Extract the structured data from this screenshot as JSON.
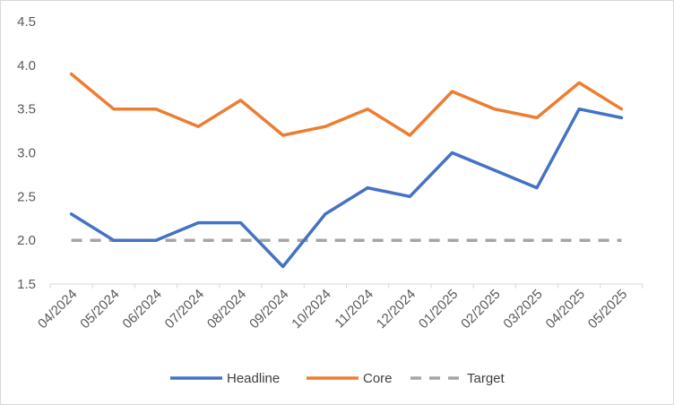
{
  "chart_data": {
    "type": "line",
    "title": "",
    "xlabel": "",
    "ylabel": "",
    "categories": [
      "04/2024",
      "05/2024",
      "06/2024",
      "07/2024",
      "08/2024",
      "09/2024",
      "10/2024",
      "11/2024",
      "12/2024",
      "01/2025",
      "02/2025",
      "03/2025",
      "04/2025",
      "05/2025"
    ],
    "ylim": [
      1.5,
      4.5
    ],
    "yticks": [
      "1.5",
      "2.0",
      "2.5",
      "3.0",
      "3.5",
      "4.0",
      "4.5"
    ],
    "grid": false,
    "legend_position": "bottom",
    "series": [
      {
        "name": "Headline",
        "color": "#4472c4",
        "dashed": false,
        "values": [
          2.3,
          2.0,
          2.0,
          2.2,
          2.2,
          1.7,
          2.3,
          2.6,
          2.5,
          3.0,
          2.8,
          2.6,
          3.5,
          3.4
        ]
      },
      {
        "name": "Core",
        "color": "#ed7d31",
        "dashed": false,
        "values": [
          3.9,
          3.5,
          3.5,
          3.3,
          3.6,
          3.2,
          3.3,
          3.5,
          3.2,
          3.7,
          3.5,
          3.4,
          3.8,
          3.5
        ]
      },
      {
        "name": "Target",
        "color": "#a5a5a5",
        "dashed": true,
        "values": [
          2.0,
          2.0,
          2.0,
          2.0,
          2.0,
          2.0,
          2.0,
          2.0,
          2.0,
          2.0,
          2.0,
          2.0,
          2.0,
          2.0
        ]
      }
    ]
  }
}
